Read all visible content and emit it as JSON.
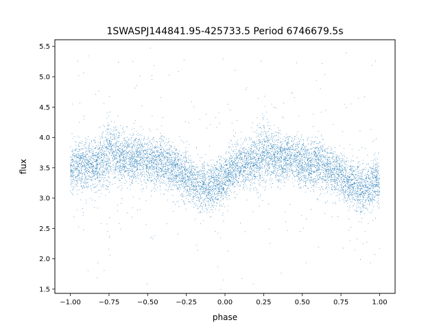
{
  "chart_data": {
    "type": "scatter",
    "title": "1SWASPJ144841.95-425733.5 Period 6746679.5s",
    "xlabel": "phase",
    "ylabel": "flux",
    "xlim": [
      -1.1,
      1.1
    ],
    "ylim": [
      1.43,
      5.61
    ],
    "xticks": [
      -1.0,
      -0.75,
      -0.5,
      -0.25,
      0.0,
      0.25,
      0.5,
      0.75,
      1.0
    ],
    "xtick_labels": [
      "−1.00",
      "−0.75",
      "−0.50",
      "−0.25",
      "0.00",
      "0.25",
      "0.50",
      "0.75",
      "1.00"
    ],
    "yticks": [
      1.5,
      2.0,
      2.5,
      3.0,
      3.5,
      4.0,
      4.5,
      5.0,
      5.5
    ],
    "ytick_labels": [
      "1.5",
      "2.0",
      "2.5",
      "3.0",
      "3.5",
      "4.0",
      "4.5",
      "5.0",
      "5.5"
    ],
    "grid": false,
    "point_color": "#1f77b4",
    "series": [
      {
        "x": [
          -1.0,
          -0.95,
          -0.9,
          -0.85,
          -0.8,
          -0.75,
          -0.7,
          -0.65,
          -0.6,
          -0.55,
          -0.5,
          -0.45,
          -0.4,
          -0.35,
          -0.3,
          -0.25,
          -0.2,
          -0.15,
          -0.1,
          -0.05,
          0.0,
          0.05,
          0.1,
          0.15,
          0.2,
          0.25,
          0.3,
          0.35,
          0.4,
          0.45,
          0.5,
          0.55,
          0.6,
          0.65,
          0.7,
          0.75,
          0.8,
          0.85,
          0.9,
          0.95,
          1.0
        ],
        "y": [
          3.5,
          3.55,
          3.55,
          3.55,
          3.6,
          3.75,
          3.7,
          3.65,
          3.65,
          3.65,
          3.6,
          3.55,
          3.6,
          3.5,
          3.45,
          3.4,
          3.25,
          3.2,
          3.15,
          3.25,
          3.3,
          3.5,
          3.55,
          3.55,
          3.6,
          3.75,
          3.7,
          3.65,
          3.65,
          3.65,
          3.6,
          3.55,
          3.6,
          3.5,
          3.45,
          3.4,
          3.25,
          3.2,
          3.15,
          3.25,
          3.3
        ],
        "spread": [
          0.35,
          0.35,
          0.35,
          0.35,
          0.4,
          0.5,
          0.4,
          0.35,
          0.35,
          0.35,
          0.35,
          0.35,
          0.35,
          0.35,
          0.35,
          0.35,
          0.35,
          0.35,
          0.35,
          0.35,
          0.35,
          0.35,
          0.35,
          0.35,
          0.4,
          0.5,
          0.4,
          0.35,
          0.35,
          0.35,
          0.35,
          0.35,
          0.35,
          0.35,
          0.35,
          0.35,
          0.35,
          0.35,
          0.35,
          0.35,
          0.35
        ]
      }
    ]
  }
}
